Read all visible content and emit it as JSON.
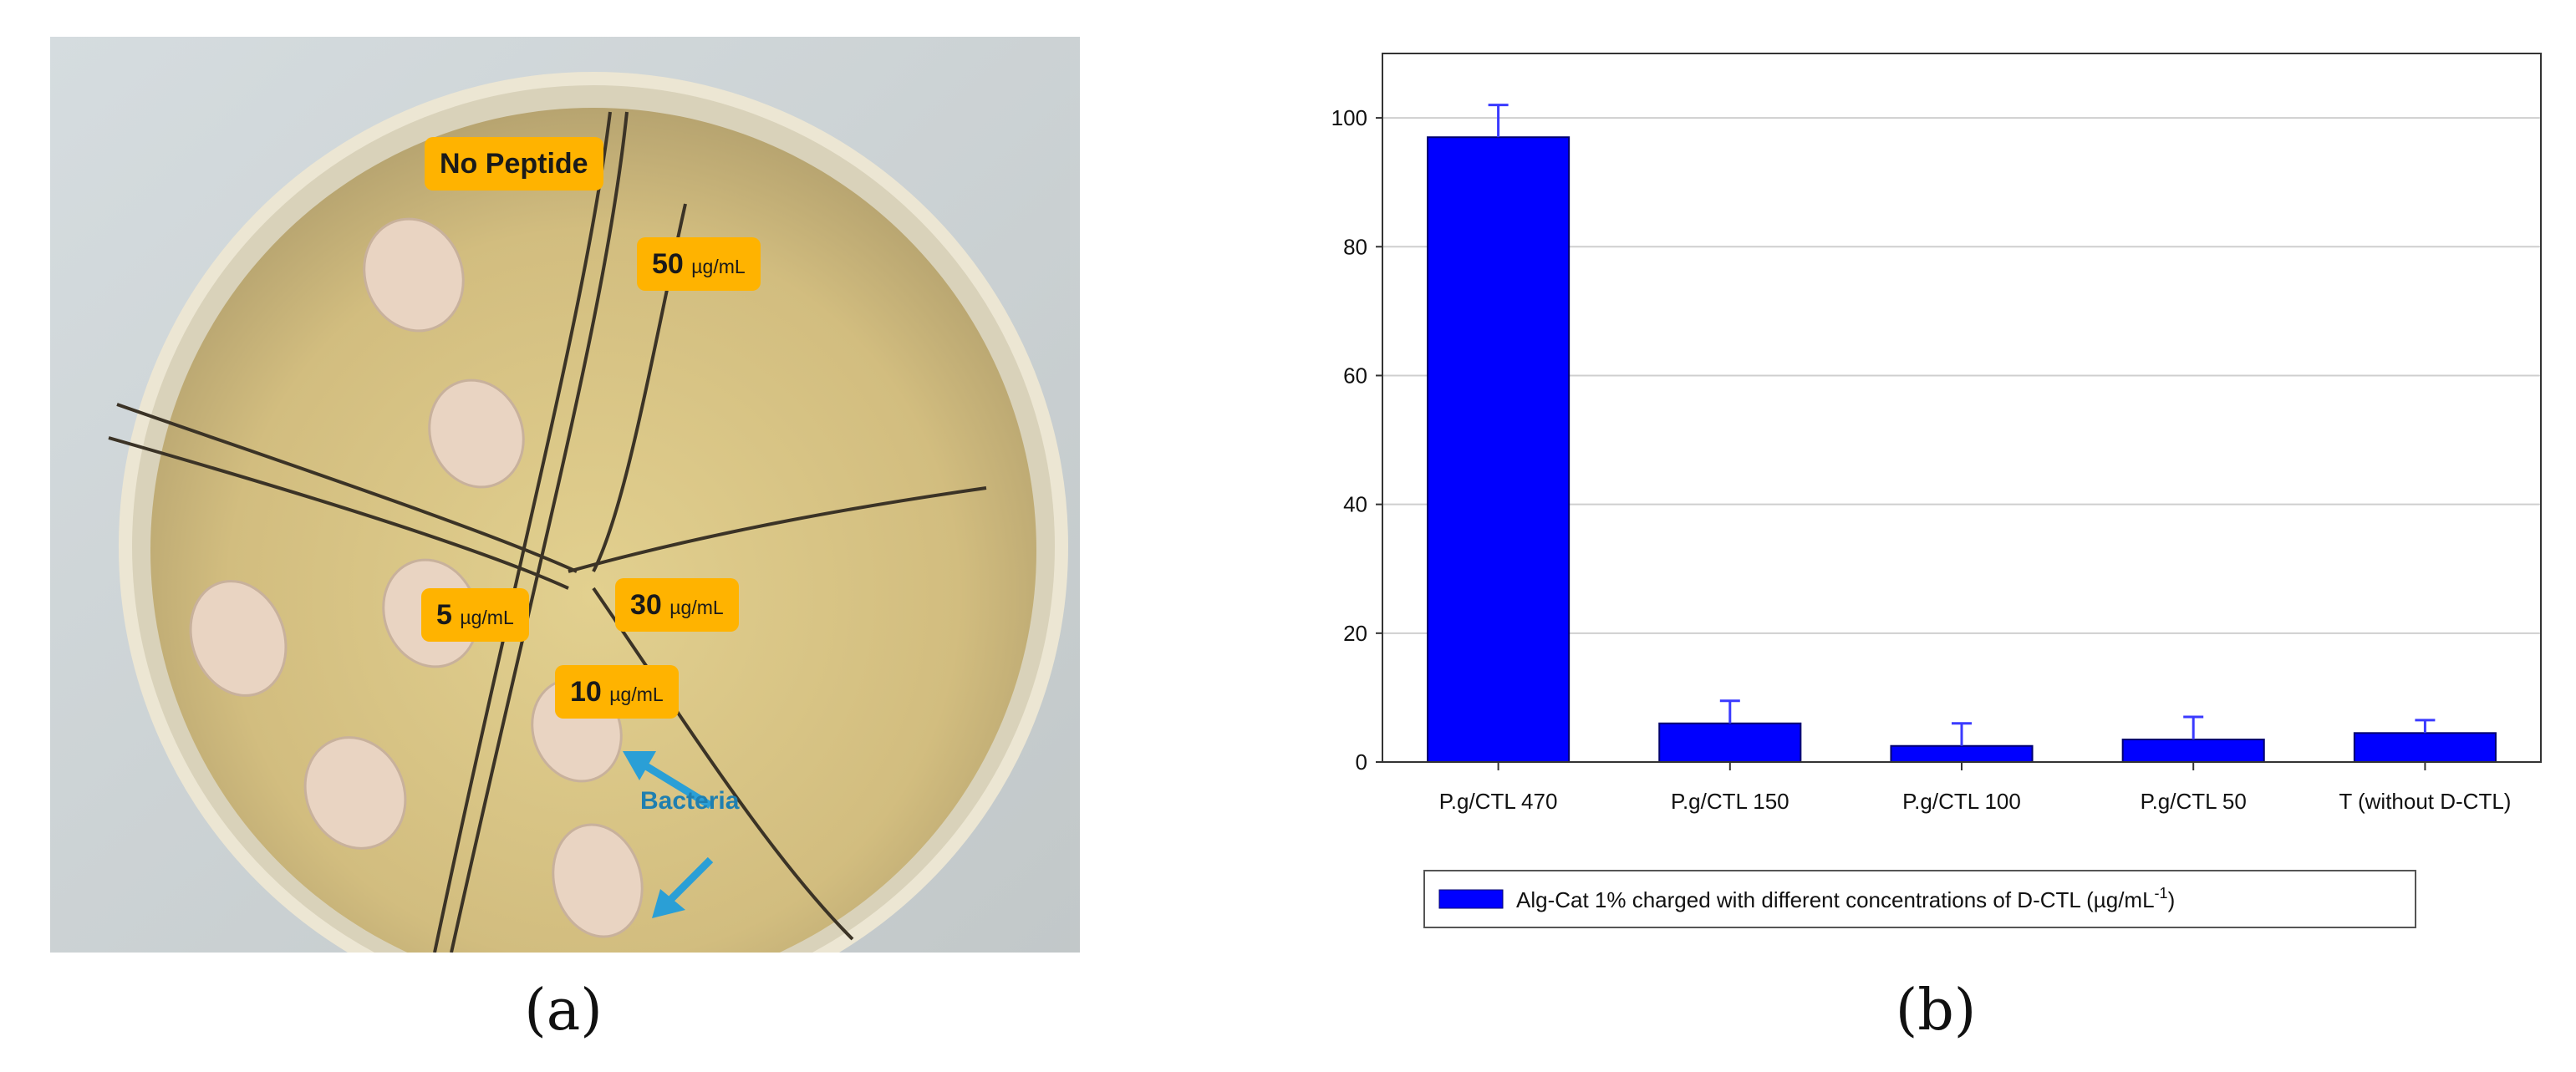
{
  "photo": {
    "labels": {
      "no_peptide": "No Peptide",
      "c50_value": "50",
      "c50_unit": "µg/mL",
      "c30_value": "30",
      "c30_unit": "µg/mL",
      "c5_value": "5",
      "c5_unit": "µg/mL",
      "c10_value": "10",
      "c10_unit": "µg/mL",
      "bacteria": "Bacteria"
    },
    "colors": {
      "label_bg": "#ffb300",
      "arrow": "#2a9fd6",
      "agar": "#cdb77a",
      "colony": "#e9d4c2"
    }
  },
  "panels": {
    "a": "(a)",
    "b": "(b)"
  },
  "chart_data": {
    "type": "bar",
    "categories": [
      "P.g/CTL 470",
      "P.g/CTL 150",
      "P.g/CTL 100",
      "P.g/CTL 50",
      "T (without D-CTL)"
    ],
    "series": [
      {
        "name": "Alg-Cat 1% charged with different concentrations of D-CTL (µg/mL⁻¹)",
        "values": [
          97,
          6,
          2.5,
          3.5,
          4.5
        ],
        "errors": [
          5,
          3.5,
          3.5,
          3.5,
          2
        ]
      }
    ],
    "yticks": [
      0,
      20,
      40,
      60,
      80,
      100
    ],
    "ylim": [
      0,
      110
    ],
    "grid": true,
    "legend_position": "bottom",
    "colors": {
      "bar": "#0000ff",
      "bar_edge": "#00006e",
      "grid": "#cfcfcf"
    }
  }
}
